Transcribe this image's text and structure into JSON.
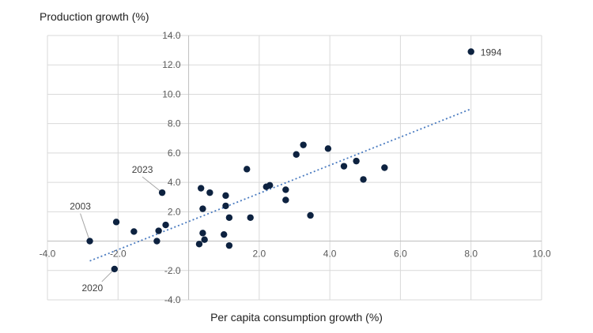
{
  "chart_data": {
    "type": "scatter",
    "xlabel": "Per capita consumption growth (%)",
    "ylabel": "Production growth (%)",
    "xlim": [
      -4.0,
      10.0
    ],
    "ylim": [
      -4.0,
      14.0
    ],
    "x_ticks": [
      "-4.0",
      "-2.0",
      "",
      "2.0",
      "4.0",
      "6.0",
      "8.0",
      "10.0"
    ],
    "x_tick_values": [
      -4,
      -2,
      0,
      2,
      4,
      6,
      8,
      10
    ],
    "y_ticks": [
      "-4.0",
      "-2.0",
      "",
      "2.0",
      "4.0",
      "6.0",
      "8.0",
      "10.0",
      "12.0",
      "14.0"
    ],
    "y_tick_values": [
      -4,
      -2,
      0,
      2,
      4,
      6,
      8,
      10,
      12,
      14
    ],
    "grid": true,
    "marker_color": "#0d2240",
    "trend_color": "#4a7bc0",
    "points": [
      {
        "x": 8.0,
        "y": 12.9
      },
      {
        "x": -2.8,
        "y": 0.0
      },
      {
        "x": -2.1,
        "y": -1.9
      },
      {
        "x": -2.05,
        "y": 1.3
      },
      {
        "x": -1.55,
        "y": 0.65
      },
      {
        "x": -0.9,
        "y": 0.0
      },
      {
        "x": -0.85,
        "y": 0.7
      },
      {
        "x": -0.75,
        "y": 3.3
      },
      {
        "x": -0.65,
        "y": 1.1
      },
      {
        "x": 0.3,
        "y": -0.2
      },
      {
        "x": 0.35,
        "y": 3.6
      },
      {
        "x": 0.4,
        "y": 2.2
      },
      {
        "x": 0.4,
        "y": 0.55
      },
      {
        "x": 0.45,
        "y": 0.1
      },
      {
        "x": 0.6,
        "y": 3.3
      },
      {
        "x": 1.0,
        "y": 0.45
      },
      {
        "x": 1.05,
        "y": 3.1
      },
      {
        "x": 1.05,
        "y": 2.4
      },
      {
        "x": 1.15,
        "y": 1.6
      },
      {
        "x": 1.15,
        "y": -0.3
      },
      {
        "x": 1.65,
        "y": 4.9
      },
      {
        "x": 1.75,
        "y": 1.6
      },
      {
        "x": 2.2,
        "y": 3.7
      },
      {
        "x": 2.3,
        "y": 3.8
      },
      {
        "x": 2.75,
        "y": 3.5
      },
      {
        "x": 2.75,
        "y": 2.8
      },
      {
        "x": 3.05,
        "y": 5.9
      },
      {
        "x": 3.25,
        "y": 6.55
      },
      {
        "x": 3.45,
        "y": 1.75
      },
      {
        "x": 3.95,
        "y": 6.3
      },
      {
        "x": 4.4,
        "y": 5.1
      },
      {
        "x": 4.75,
        "y": 5.45
      },
      {
        "x": 4.95,
        "y": 4.2
      },
      {
        "x": 5.55,
        "y": 5.0
      }
    ],
    "annotations": [
      {
        "text": "1994",
        "x": 8.0,
        "y": 12.9
      },
      {
        "text": "2003",
        "x": -2.8,
        "y": 0.0
      },
      {
        "text": "2020",
        "x": -2.1,
        "y": -1.9
      },
      {
        "text": "2023",
        "x": -0.75,
        "y": 3.3
      }
    ],
    "trendline": {
      "x": [
        -2.8,
        8.0
      ],
      "y": [
        -1.35,
        9.0
      ]
    }
  }
}
